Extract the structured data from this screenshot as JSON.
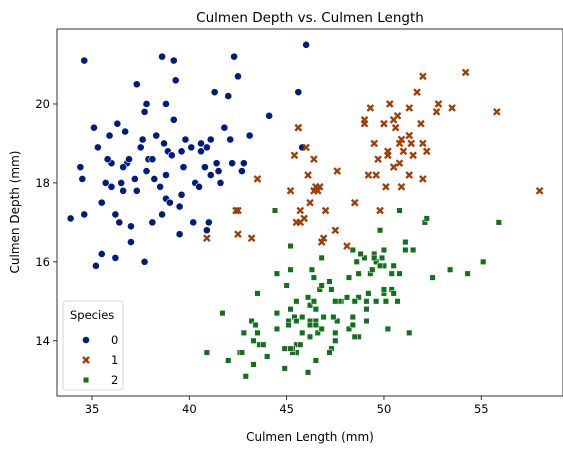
{
  "chart_data": {
    "type": "scatter",
    "title": "Culmen Depth vs. Culmen Length",
    "xlabel": "Culmen Length (mm)",
    "ylabel": "Culmen Depth (mm)",
    "xlim": [
      33.2,
      59.2
    ],
    "ylim": [
      12.6,
      21.9
    ],
    "xticks": [
      35,
      40,
      45,
      50,
      55
    ],
    "yticks": [
      14,
      16,
      18,
      20
    ],
    "grid": false,
    "legend": {
      "title": "Species",
      "placement": "lower-left"
    },
    "series": [
      {
        "name": "0",
        "marker": "circle",
        "color": "#001c7f",
        "points": [
          [
            34.6,
            21.1
          ],
          [
            34.5,
            18.1
          ],
          [
            34.4,
            18.4
          ],
          [
            33.9,
            17.1
          ],
          [
            34.6,
            17.2
          ],
          [
            35.1,
            19.4
          ],
          [
            35.3,
            18.9
          ],
          [
            35.2,
            15.9
          ],
          [
            35.5,
            16.2
          ],
          [
            35.5,
            17.5
          ],
          [
            35.7,
            18.0
          ],
          [
            35.9,
            19.2
          ],
          [
            36.0,
            18.5
          ],
          [
            36.0,
            17.9
          ],
          [
            36.2,
            17.2
          ],
          [
            36.2,
            16.1
          ],
          [
            36.3,
            19.5
          ],
          [
            36.4,
            17.0
          ],
          [
            36.5,
            18.0
          ],
          [
            36.6,
            17.8
          ],
          [
            36.7,
            19.3
          ],
          [
            36.8,
            18.5
          ],
          [
            36.9,
            18.6
          ],
          [
            37.0,
            16.9
          ],
          [
            37.2,
            18.1
          ],
          [
            37.3,
            20.5
          ],
          [
            37.3,
            17.8
          ],
          [
            37.5,
            18.9
          ],
          [
            37.6,
            19.1
          ],
          [
            37.7,
            16.0
          ],
          [
            37.8,
            18.3
          ],
          [
            37.8,
            20.0
          ],
          [
            37.9,
            18.6
          ],
          [
            38.1,
            17.0
          ],
          [
            38.1,
            18.6
          ],
          [
            38.2,
            18.1
          ],
          [
            38.5,
            17.9
          ],
          [
            38.6,
            21.2
          ],
          [
            38.6,
            17.2
          ],
          [
            38.7,
            19.0
          ],
          [
            38.8,
            20.0
          ],
          [
            38.8,
            17.6
          ],
          [
            38.9,
            18.8
          ],
          [
            39.0,
            17.5
          ],
          [
            39.1,
            18.7
          ],
          [
            39.2,
            21.1
          ],
          [
            39.2,
            19.6
          ],
          [
            39.3,
            20.6
          ],
          [
            39.5,
            17.4
          ],
          [
            39.6,
            18.8
          ],
          [
            39.6,
            17.7
          ],
          [
            39.7,
            18.4
          ],
          [
            39.8,
            19.1
          ],
          [
            40.1,
            18.9
          ],
          [
            40.2,
            17.0
          ],
          [
            40.3,
            18.0
          ],
          [
            40.6,
            18.8
          ],
          [
            40.6,
            19.0
          ],
          [
            40.8,
            18.4
          ],
          [
            40.9,
            16.8
          ],
          [
            40.9,
            18.9
          ],
          [
            41.1,
            19.1
          ],
          [
            41.1,
            18.2
          ],
          [
            41.3,
            20.3
          ],
          [
            41.4,
            18.5
          ],
          [
            41.5,
            18.3
          ],
          [
            41.6,
            18.0
          ],
          [
            41.8,
            19.4
          ],
          [
            42.0,
            20.2
          ],
          [
            42.1,
            19.1
          ],
          [
            42.2,
            18.5
          ],
          [
            42.3,
            21.2
          ],
          [
            42.5,
            20.7
          ],
          [
            42.7,
            18.3
          ],
          [
            42.8,
            18.5
          ],
          [
            43.1,
            19.2
          ],
          [
            44.1,
            19.7
          ],
          [
            45.6,
            20.3
          ],
          [
            46.0,
            21.5
          ],
          [
            45.8,
            18.9
          ],
          [
            36.3,
            19.5
          ],
          [
            37.0,
            16.5
          ],
          [
            38.3,
            19.2
          ],
          [
            39.5,
            16.7
          ],
          [
            40.5,
            17.9
          ],
          [
            41.0,
            17.0
          ],
          [
            36.6,
            18.4
          ],
          [
            38.8,
            18.2
          ],
          [
            35.8,
            18.6
          ],
          [
            37.7,
            19.8
          ]
        ]
      },
      {
        "name": "1",
        "marker": "x",
        "color": "#a23c00",
        "points": [
          [
            46.5,
            17.9
          ],
          [
            50.0,
            19.5
          ],
          [
            51.3,
            19.2
          ],
          [
            45.4,
            18.7
          ],
          [
            52.7,
            19.8
          ],
          [
            45.2,
            17.8
          ],
          [
            46.1,
            18.2
          ],
          [
            51.3,
            18.2
          ],
          [
            46.0,
            18.9
          ],
          [
            51.3,
            19.9
          ],
          [
            46.6,
            17.8
          ],
          [
            51.7,
            20.3
          ],
          [
            47.0,
            17.3
          ],
          [
            52.0,
            18.1
          ],
          [
            45.9,
            17.1
          ],
          [
            50.5,
            19.6
          ],
          [
            50.3,
            20.0
          ],
          [
            58.0,
            17.8
          ],
          [
            46.4,
            18.6
          ],
          [
            49.2,
            18.2
          ],
          [
            42.4,
            17.3
          ],
          [
            48.5,
            17.5
          ],
          [
            43.2,
            16.6
          ],
          [
            50.6,
            19.4
          ],
          [
            46.7,
            17.9
          ],
          [
            52.0,
            19.0
          ],
          [
            50.5,
            18.4
          ],
          [
            49.5,
            19.0
          ],
          [
            46.4,
            17.8
          ],
          [
            52.8,
            20.0
          ],
          [
            40.9,
            16.6
          ],
          [
            54.2,
            20.8
          ],
          [
            42.5,
            16.7
          ],
          [
            51.0,
            18.8
          ],
          [
            49.7,
            18.6
          ],
          [
            47.5,
            16.8
          ],
          [
            47.6,
            18.3
          ],
          [
            52.0,
            20.7
          ],
          [
            46.9,
            16.6
          ],
          [
            53.5,
            19.9
          ],
          [
            49.0,
            19.5
          ],
          [
            46.2,
            17.5
          ],
          [
            50.9,
            19.1
          ],
          [
            45.5,
            17.0
          ],
          [
            50.9,
            17.9
          ],
          [
            50.8,
            18.5
          ],
          [
            50.1,
            17.9
          ],
          [
            49.0,
            19.6
          ],
          [
            51.5,
            18.7
          ],
          [
            49.8,
            17.3
          ],
          [
            48.1,
            16.4
          ],
          [
            51.4,
            19.0
          ],
          [
            45.7,
            17.3
          ],
          [
            50.7,
            19.7
          ],
          [
            42.5,
            17.3
          ],
          [
            52.2,
            18.8
          ],
          [
            45.6,
            19.4
          ],
          [
            49.3,
            19.9
          ],
          [
            50.2,
            18.8
          ],
          [
            45.6,
            19.4
          ],
          [
            51.9,
            19.5
          ],
          [
            46.8,
            16.5
          ],
          [
            45.7,
            17.0
          ],
          [
            55.8,
            19.8
          ],
          [
            43.5,
            18.1
          ],
          [
            49.6,
            18.2
          ],
          [
            50.8,
            19.0
          ],
          [
            50.2,
            18.7
          ]
        ]
      },
      {
        "name": "2",
        "marker": "square",
        "color": "#12711c",
        "points": [
          [
            46.1,
            13.2
          ],
          [
            50.0,
            16.3
          ],
          [
            48.7,
            14.1
          ],
          [
            50.0,
            15.2
          ],
          [
            47.6,
            14.5
          ],
          [
            46.5,
            13.5
          ],
          [
            45.4,
            14.6
          ],
          [
            46.7,
            15.3
          ],
          [
            43.3,
            13.4
          ],
          [
            46.8,
            15.4
          ],
          [
            40.9,
            13.7
          ],
          [
            49.0,
            16.1
          ],
          [
            45.5,
            13.7
          ],
          [
            48.4,
            14.6
          ],
          [
            45.8,
            14.6
          ],
          [
            49.3,
            15.7
          ],
          [
            42.0,
            13.5
          ],
          [
            49.2,
            15.2
          ],
          [
            46.2,
            14.5
          ],
          [
            48.7,
            15.1
          ],
          [
            50.2,
            14.3
          ],
          [
            45.1,
            14.5
          ],
          [
            46.5,
            14.5
          ],
          [
            46.3,
            15.8
          ],
          [
            42.9,
            13.1
          ],
          [
            46.1,
            15.1
          ],
          [
            44.5,
            14.3
          ],
          [
            47.8,
            15.0
          ],
          [
            48.2,
            14.3
          ],
          [
            50.0,
            15.3
          ],
          [
            47.3,
            15.3
          ],
          [
            42.8,
            14.2
          ],
          [
            45.1,
            14.5
          ],
          [
            59.6,
            17.0
          ],
          [
            49.1,
            14.8
          ],
          [
            48.4,
            16.3
          ],
          [
            42.6,
            13.7
          ],
          [
            44.4,
            17.3
          ],
          [
            44.0,
            13.6
          ],
          [
            48.7,
            15.7
          ],
          [
            42.7,
            13.7
          ],
          [
            49.6,
            16.0
          ],
          [
            45.3,
            13.7
          ],
          [
            49.6,
            15.0
          ],
          [
            50.5,
            15.9
          ],
          [
            43.6,
            13.9
          ],
          [
            45.5,
            13.9
          ],
          [
            50.5,
            15.9
          ],
          [
            44.9,
            13.3
          ],
          [
            45.2,
            15.8
          ],
          [
            46.6,
            14.2
          ],
          [
            48.5,
            14.1
          ],
          [
            45.1,
            14.4
          ],
          [
            50.1,
            15.0
          ],
          [
            46.5,
            14.4
          ],
          [
            45.0,
            15.4
          ],
          [
            43.8,
            13.9
          ],
          [
            45.5,
            15.0
          ],
          [
            43.2,
            14.5
          ],
          [
            50.4,
            15.3
          ],
          [
            45.3,
            13.8
          ],
          [
            46.2,
            14.9
          ],
          [
            45.7,
            13.9
          ],
          [
            54.3,
            15.7
          ],
          [
            45.8,
            14.2
          ],
          [
            49.8,
            16.8
          ],
          [
            46.2,
            14.4
          ],
          [
            49.5,
            16.2
          ],
          [
            43.5,
            14.2
          ],
          [
            50.7,
            15.0
          ],
          [
            47.7,
            15.0
          ],
          [
            46.4,
            15.6
          ],
          [
            48.2,
            15.6
          ],
          [
            46.5,
            14.8
          ],
          [
            46.4,
            15.0
          ],
          [
            48.6,
            16.0
          ],
          [
            47.5,
            14.2
          ],
          [
            51.1,
            16.3
          ],
          [
            45.2,
            13.8
          ],
          [
            45.2,
            16.4
          ],
          [
            49.1,
            14.5
          ],
          [
            52.5,
            15.6
          ],
          [
            47.4,
            14.6
          ],
          [
            50.0,
            15.9
          ],
          [
            44.9,
            13.8
          ],
          [
            50.8,
            17.3
          ],
          [
            43.4,
            14.4
          ],
          [
            51.3,
            14.2
          ],
          [
            47.5,
            14.0
          ],
          [
            52.1,
            17.0
          ],
          [
            47.5,
            15.0
          ],
          [
            52.2,
            17.1
          ],
          [
            45.5,
            14.5
          ],
          [
            49.5,
            16.1
          ],
          [
            44.5,
            14.7
          ],
          [
            50.8,
            15.7
          ],
          [
            49.4,
            15.8
          ],
          [
            46.9,
            14.6
          ],
          [
            48.4,
            14.4
          ],
          [
            51.1,
            16.5
          ],
          [
            48.5,
            15.0
          ],
          [
            55.9,
            17.0
          ],
          [
            47.2,
            15.5
          ],
          [
            49.1,
            15.0
          ],
          [
            47.3,
            13.8
          ],
          [
            46.8,
            16.1
          ],
          [
            41.7,
            14.7
          ],
          [
            53.4,
            15.8
          ],
          [
            43.3,
            14.0
          ],
          [
            48.1,
            15.1
          ],
          [
            50.5,
            15.2
          ],
          [
            49.8,
            15.9
          ],
          [
            43.5,
            15.2
          ],
          [
            51.5,
            16.3
          ],
          [
            46.2,
            14.1
          ],
          [
            55.1,
            16.0
          ],
          [
            44.5,
            15.7
          ],
          [
            48.8,
            16.2
          ],
          [
            47.2,
            13.7
          ],
          [
            46.8,
            14.3
          ],
          [
            50.4,
            15.7
          ],
          [
            45.2,
            14.8
          ],
          [
            49.9,
            16.1
          ]
        ]
      }
    ]
  }
}
